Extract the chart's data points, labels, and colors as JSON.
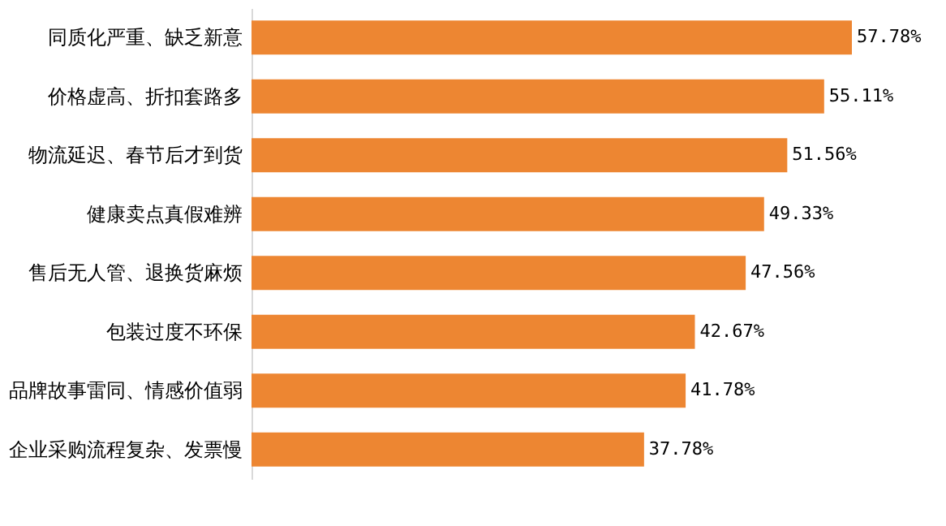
{
  "chart_data": {
    "type": "bar",
    "orientation": "horizontal",
    "categories": [
      "同质化严重、缺乏新意",
      "价格虚高、折扣套路多",
      "物流延迟、春节后才到货",
      "健康卖点真假难辨",
      "售后无人管、退换货麻烦",
      "包装过度不环保",
      "品牌故事雷同、情感价值弱",
      "企业采购流程复杂、发票慢"
    ],
    "values": [
      57.78,
      55.11,
      51.56,
      49.33,
      47.56,
      42.67,
      41.78,
      37.78
    ],
    "value_labels": [
      "57.78%",
      "55.11%",
      "51.56%",
      "49.33%",
      "47.56%",
      "42.67%",
      "41.78%",
      "37.78%"
    ],
    "color": "#ed8632",
    "grid": false
  }
}
